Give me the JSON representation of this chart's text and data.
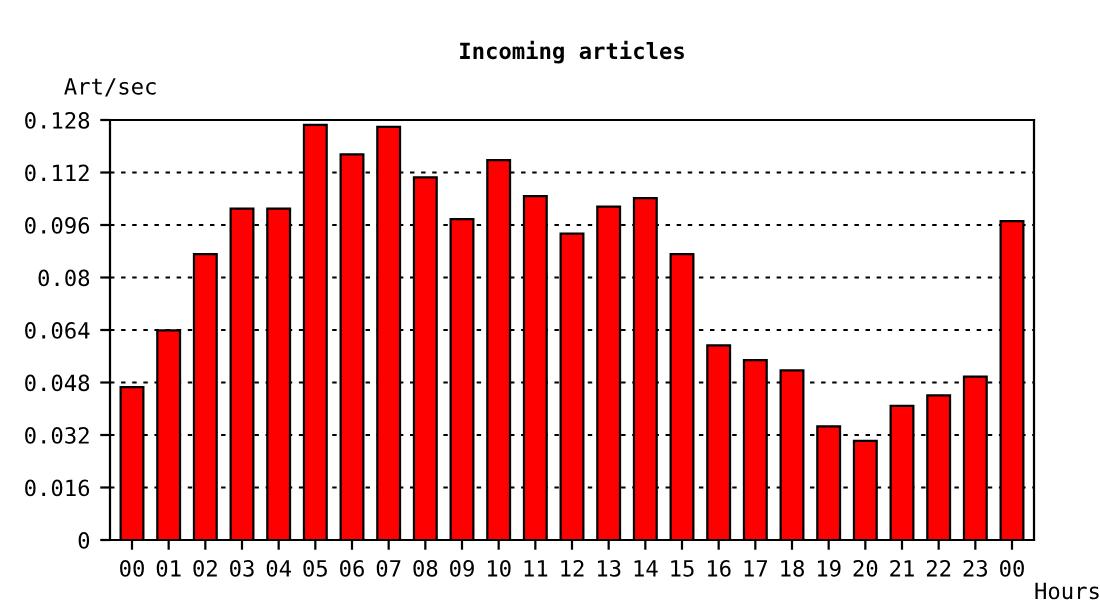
{
  "chart_data": {
    "type": "bar",
    "title": "Incoming articles",
    "ylabel": "Art/sec",
    "xlabel": "Hours",
    "categories": [
      "00",
      "01",
      "02",
      "03",
      "04",
      "05",
      "06",
      "07",
      "08",
      "09",
      "10",
      "11",
      "12",
      "13",
      "14",
      "15",
      "16",
      "17",
      "18",
      "19",
      "20",
      "21",
      "22",
      "23",
      "00"
    ],
    "values": [
      0.0466,
      0.0639,
      0.0871,
      0.101,
      0.101,
      0.1265,
      0.1175,
      0.1259,
      0.1105,
      0.0978,
      0.1158,
      0.1048,
      0.0934,
      0.1016,
      0.1042,
      0.0871,
      0.0593,
      0.0548,
      0.0517,
      0.0346,
      0.0302,
      0.0409,
      0.0441,
      0.0498,
      0.0972
    ],
    "color": "#ff0000",
    "ylim": [
      0,
      0.128
    ],
    "yticks": [
      0,
      0.016,
      0.032,
      0.048,
      0.064,
      {
        "value": 0.08,
        "label": "0.08"
      },
      0.096,
      0.112,
      0.128
    ],
    "grid": "y"
  }
}
